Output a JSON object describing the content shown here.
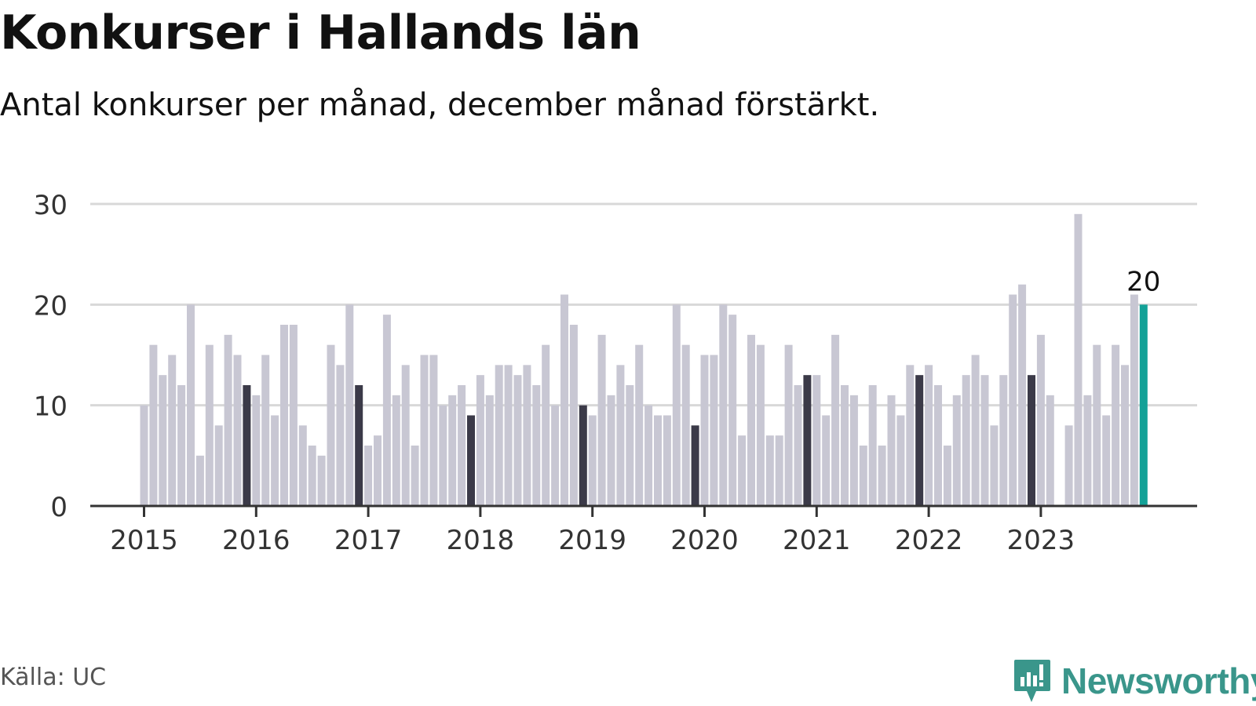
{
  "title": "Konkurser i Hallands län",
  "subtitle": "Antal konkurser per månad, december månad förstärkt.",
  "source": "Källa: UC",
  "brand": {
    "name": "Newsworthy",
    "icon": "newsworthy-logo-icon"
  },
  "colors": {
    "bar": "#c8c7d3",
    "december": "#3b3a48",
    "latest": "#13a197",
    "grid": "#d8d8d8",
    "axis": "#333333"
  },
  "chart_data": {
    "type": "bar",
    "title": "Konkurser i Hallands län",
    "subtitle": "Antal konkurser per månad, december månad förstärkt.",
    "xlabel": "",
    "ylabel": "",
    "ylim": [
      0,
      30
    ],
    "yticks": [
      "0",
      "10",
      "20",
      "30"
    ],
    "year_labels": [
      "2015",
      "2016",
      "2017",
      "2018",
      "2019",
      "2020",
      "2021",
      "2022",
      "2023"
    ],
    "start": "2015-01",
    "values": [
      10,
      16,
      13,
      15,
      12,
      20,
      5,
      16,
      8,
      17,
      15,
      12,
      11,
      15,
      9,
      18,
      18,
      8,
      6,
      5,
      16,
      14,
      20,
      12,
      6,
      7,
      19,
      11,
      14,
      6,
      15,
      15,
      10,
      11,
      12,
      9,
      13,
      11,
      14,
      14,
      13,
      14,
      12,
      16,
      10,
      21,
      18,
      10,
      9,
      17,
      11,
      14,
      12,
      16,
      10,
      9,
      9,
      20,
      16,
      8,
      15,
      15,
      20,
      19,
      7,
      17,
      16,
      7,
      7,
      16,
      12,
      13,
      13,
      9,
      17,
      12,
      11,
      6,
      12,
      6,
      11,
      9,
      14,
      13,
      14,
      12,
      6,
      11,
      13,
      15,
      13,
      8,
      13,
      21,
      22,
      13,
      17,
      11,
      0,
      8,
      29,
      11,
      16,
      9,
      16,
      14,
      21,
      20
    ],
    "highlight": "december",
    "annotation": {
      "label": "20"
    },
    "grid": true
  }
}
